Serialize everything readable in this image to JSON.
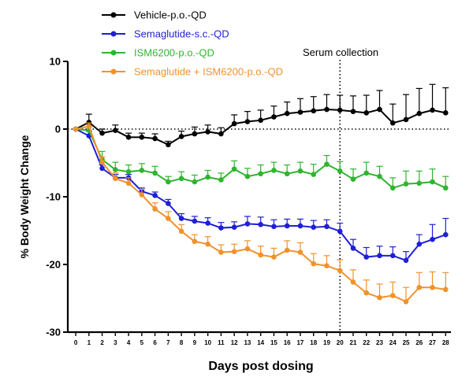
{
  "chart_data": {
    "type": "line",
    "title": "",
    "xlabel": "Days post dosing",
    "ylabel": "% Body Weight Change",
    "x": [
      0,
      1,
      2,
      3,
      4,
      5,
      6,
      7,
      8,
      9,
      10,
      11,
      12,
      13,
      14,
      15,
      16,
      17,
      18,
      19,
      20,
      21,
      22,
      23,
      24,
      25,
      26,
      27,
      28
    ],
    "xticks": [
      "0",
      "1",
      "2",
      "3",
      "4",
      "5",
      "6",
      "7",
      "8",
      "9",
      "10",
      "11",
      "12",
      "13",
      "14",
      "15",
      "16",
      "17",
      "18",
      "19",
      "20",
      "21",
      "22",
      "23",
      "24",
      "25",
      "26",
      "27",
      "28"
    ],
    "xlim": [
      -0.6,
      28.4
    ],
    "ylim": [
      -30,
      10
    ],
    "yticks": [
      "10",
      "0",
      "-10",
      "-20",
      "-30"
    ],
    "yticks_values": [
      10,
      0,
      -10,
      -20,
      -30
    ],
    "reference_line_y": 0,
    "annotation": {
      "x": 20,
      "label": "Serum collection"
    },
    "legend_position": "top-left",
    "series": [
      {
        "name": "Vehicle-p.o.-QD",
        "color": "#000000",
        "values": [
          0,
          1.0,
          -0.6,
          -0.2,
          -1.2,
          -1.2,
          -1.4,
          -2.3,
          -1.1,
          -0.7,
          -0.4,
          -0.7,
          0.8,
          1.1,
          1.3,
          1.8,
          2.3,
          2.5,
          2.7,
          2.9,
          2.8,
          2.6,
          2.4,
          2.9,
          0.9,
          1.4,
          2.3,
          2.8,
          2.4
        ],
        "errors": [
          0,
          1.2,
          0.6,
          0.8,
          0.6,
          0.6,
          0.7,
          0.5,
          0.8,
          1.0,
          1.0,
          0.9,
          1.3,
          1.5,
          1.5,
          1.6,
          1.7,
          2.0,
          2.1,
          2.2,
          2.2,
          2.3,
          2.6,
          2.8,
          2.8,
          3.7,
          3.7,
          3.8,
          3.7
        ]
      },
      {
        "name": "Semaglutide-s.c.-QD",
        "color": "#1f1fd6",
        "values": [
          0,
          -1.0,
          -5.8,
          -7.2,
          -7.2,
          -9.2,
          -9.8,
          -11.0,
          -13.2,
          -13.6,
          -13.9,
          -14.6,
          -14.5,
          -14.0,
          -14.1,
          -14.4,
          -14.3,
          -14.3,
          -14.5,
          -14.4,
          -15.1,
          -17.6,
          -18.9,
          -18.7,
          -18.7,
          -19.4,
          -17.0,
          -16.3,
          -15.6
        ],
        "errors": [
          0,
          0.7,
          0.5,
          0.5,
          0.5,
          0.5,
          0.5,
          0.6,
          0.7,
          0.7,
          0.8,
          0.8,
          0.8,
          1.1,
          1.1,
          1.0,
          1.0,
          1.0,
          1.0,
          1.0,
          1.2,
          1.3,
          1.4,
          1.4,
          1.3,
          1.3,
          1.4,
          2.2,
          2.4
        ]
      },
      {
        "name": "ISM6200-p.o.-QD",
        "color": "#2fb52f",
        "values": [
          0,
          -0.2,
          -4.5,
          -6.0,
          -6.3,
          -6.1,
          -6.5,
          -7.8,
          -7.3,
          -7.8,
          -7.1,
          -7.5,
          -5.9,
          -7.0,
          -6.6,
          -6.1,
          -6.6,
          -6.2,
          -6.7,
          -5.2,
          -6.2,
          -7.4,
          -6.5,
          -7.0,
          -8.7,
          -8.1,
          -8.0,
          -7.8,
          -8.7
        ],
        "errors": [
          0,
          0.5,
          1.2,
          1.1,
          1.0,
          1.0,
          1.0,
          0.8,
          1.0,
          1.0,
          1.0,
          1.0,
          1.2,
          1.2,
          1.3,
          1.2,
          1.3,
          1.3,
          1.5,
          1.3,
          1.4,
          1.5,
          1.6,
          1.5,
          1.5,
          1.9,
          1.8,
          1.9,
          1.7
        ]
      },
      {
        "name": "Semaglutide + ISM6200-p.o.-QD",
        "color": "#f0922b",
        "values": [
          0,
          0.4,
          -4.9,
          -7.3,
          -8.0,
          -9.7,
          -11.8,
          -13.2,
          -15.1,
          -16.6,
          -17.0,
          -18.2,
          -18.1,
          -17.7,
          -18.6,
          -18.9,
          -17.9,
          -18.2,
          -19.9,
          -20.2,
          -20.9,
          -22.6,
          -24.2,
          -24.9,
          -24.6,
          -25.5,
          -23.4,
          -23.4,
          -23.7
        ],
        "errors": [
          0,
          0.5,
          0.8,
          0.8,
          0.8,
          0.8,
          0.9,
          1.0,
          1.0,
          1.0,
          1.1,
          1.1,
          1.1,
          1.2,
          1.3,
          1.3,
          1.4,
          1.4,
          1.5,
          1.5,
          1.6,
          1.8,
          1.9,
          2.0,
          2.0,
          2.1,
          2.2,
          2.3,
          2.5
        ]
      }
    ]
  }
}
